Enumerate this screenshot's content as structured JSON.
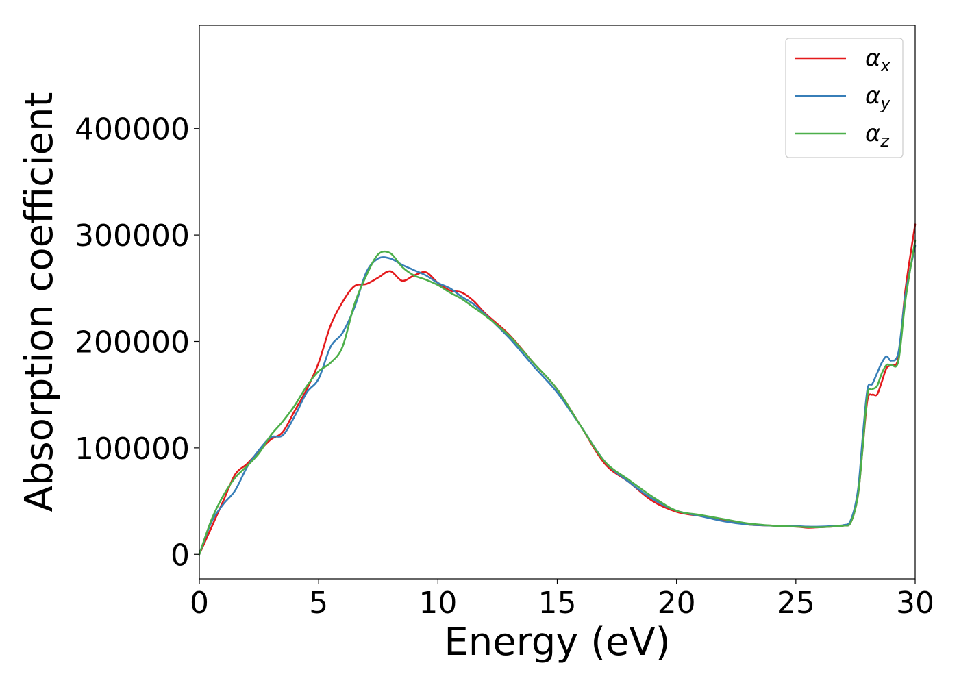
{
  "chart_data": {
    "type": "line",
    "title": "",
    "xlabel": "Energy (eV)",
    "ylabel": "Absorption coefficient",
    "xlim": [
      0,
      30
    ],
    "ylim": [
      -23000,
      497000
    ],
    "grid": false,
    "legend_position": "top-right",
    "x_ticks": [
      {
        "value": 0,
        "label": "0"
      },
      {
        "value": 5,
        "label": "5"
      },
      {
        "value": 10,
        "label": "10"
      },
      {
        "value": 15,
        "label": "15"
      },
      {
        "value": 20,
        "label": "20"
      },
      {
        "value": 25,
        "label": "25"
      },
      {
        "value": 30,
        "label": "30"
      }
    ],
    "y_ticks": [
      {
        "value": 0,
        "label": "0"
      },
      {
        "value": 100000,
        "label": "100000"
      },
      {
        "value": 200000,
        "label": "200000"
      },
      {
        "value": 300000,
        "label": "300000"
      },
      {
        "value": 400000,
        "label": "400000"
      }
    ],
    "series": [
      {
        "name": "αx",
        "symbol": "α",
        "subscript": "x",
        "color": "#e41a1c",
        "x": [
          0,
          0.5,
          1.0,
          1.5,
          2.0,
          2.5,
          3.0,
          3.5,
          4.0,
          4.5,
          5.0,
          5.5,
          6.0,
          6.5,
          7.0,
          7.5,
          8.0,
          8.5,
          9.0,
          9.5,
          10.0,
          10.5,
          11.0,
          11.5,
          12.0,
          13.0,
          14.0,
          15.0,
          16.0,
          17.0,
          18.0,
          19.0,
          20.0,
          21.0,
          22.0,
          23.0,
          24.0,
          25.0,
          25.5,
          26.0,
          26.5,
          27.0,
          27.3,
          27.6,
          27.8,
          28.0,
          28.2,
          28.4,
          28.6,
          28.8,
          29.0,
          29.3,
          29.6,
          30.0
        ],
        "values": [
          0,
          25000,
          50000,
          75000,
          85000,
          97000,
          108000,
          115000,
          135000,
          155000,
          180000,
          215000,
          237000,
          252000,
          254000,
          260000,
          266000,
          257000,
          262000,
          265000,
          255000,
          248000,
          246000,
          238000,
          226000,
          206000,
          180000,
          155000,
          120000,
          85000,
          68000,
          50000,
          40000,
          36000,
          32000,
          28000,
          27000,
          26000,
          25000,
          25500,
          26000,
          27000,
          30000,
          55000,
          100000,
          145000,
          150000,
          150000,
          162000,
          175000,
          178000,
          185000,
          250000,
          310000
        ]
      },
      {
        "name": "αy",
        "symbol": "α",
        "subscript": "y",
        "color": "#377eb8",
        "x": [
          0,
          0.5,
          1.0,
          1.5,
          2.0,
          2.5,
          3.0,
          3.5,
          4.0,
          4.5,
          5.0,
          5.5,
          6.0,
          6.5,
          7.0,
          7.5,
          8.0,
          8.5,
          9.0,
          9.5,
          10.0,
          10.5,
          11.0,
          11.5,
          12.0,
          13.0,
          14.0,
          15.0,
          16.0,
          17.0,
          18.0,
          19.0,
          20.0,
          21.0,
          22.0,
          23.0,
          24.0,
          25.0,
          25.5,
          26.0,
          26.5,
          27.0,
          27.3,
          27.6,
          27.8,
          28.0,
          28.2,
          28.4,
          28.6,
          28.8,
          29.0,
          29.3,
          29.6,
          30.0
        ],
        "values": [
          0,
          30000,
          47000,
          60000,
          82000,
          98000,
          110000,
          112000,
          130000,
          152000,
          165000,
          195000,
          208000,
          232000,
          265000,
          278000,
          278000,
          272000,
          267000,
          262000,
          255000,
          250000,
          242000,
          235000,
          225000,
          203000,
          177000,
          152000,
          120000,
          87000,
          68000,
          52000,
          41000,
          36000,
          31000,
          28000,
          27000,
          26500,
          26000,
          26000,
          26500,
          27500,
          32000,
          60000,
          110000,
          155000,
          160000,
          170000,
          180000,
          186000,
          182000,
          190000,
          245000,
          290000
        ]
      },
      {
        "name": "αz",
        "symbol": "α",
        "subscript": "z",
        "color": "#4daf4a",
        "x": [
          0,
          0.5,
          1.0,
          1.5,
          2.0,
          2.5,
          3.0,
          3.5,
          4.0,
          4.5,
          5.0,
          5.5,
          6.0,
          6.5,
          7.0,
          7.5,
          8.0,
          8.5,
          9.0,
          9.5,
          10.0,
          10.5,
          11.0,
          11.5,
          12.0,
          13.0,
          14.0,
          15.0,
          16.0,
          17.0,
          18.0,
          19.0,
          20.0,
          21.0,
          22.0,
          23.0,
          24.0,
          25.0,
          25.5,
          26.0,
          26.5,
          27.0,
          27.3,
          27.6,
          27.8,
          28.0,
          28.2,
          28.4,
          28.6,
          28.8,
          29.0,
          29.3,
          29.6,
          30.0
        ],
        "values": [
          0,
          32000,
          55000,
          72000,
          83000,
          95000,
          112000,
          125000,
          140000,
          158000,
          172000,
          180000,
          195000,
          235000,
          262000,
          282000,
          283000,
          270000,
          262000,
          258000,
          253000,
          246000,
          240000,
          232000,
          224000,
          205000,
          180000,
          155000,
          120000,
          87000,
          70000,
          54000,
          41000,
          37000,
          33000,
          29000,
          27000,
          26000,
          25500,
          25500,
          26000,
          27000,
          30000,
          55000,
          100000,
          150000,
          155000,
          158000,
          170000,
          178000,
          178000,
          182000,
          240000,
          295000
        ]
      }
    ]
  }
}
